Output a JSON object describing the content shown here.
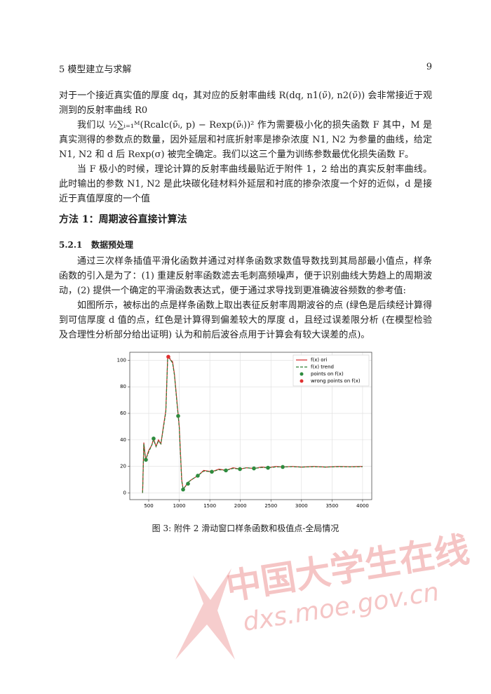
{
  "header": {
    "section": "5 模型建立与求解",
    "page": "9"
  },
  "body": {
    "paragraphs": [
      "对于一个接近真实值的厚度 dq，其对应的反射率曲线 R(dq, n1(ν̃), n2(ν̃)) 会非常接近于观测到的反射率曲线 R0",
      "我们以 ½∑ᵢ₌₁ᴹ(Rcalc(ν̃ᵢ, p) − Rexp(ν̃ᵢ))² 作为需要极小化的损失函数 F 其中，M 是真实测得的参数点的数量，因外延层和衬底折射率是掺杂浓度 N1, N2 为参量的曲线，给定 N1, N2 和 d 后 Rexp(σ) 被完全确定。我们以这三个量为训练参数最优化损失函数 F。",
      "当 F 极小的时候，理论计算的反射率曲线最贴近于附件 1，2 给出的真实反射率曲线。此时输出的参数 N1, N2 是此块碳化硅材料外延层和衬底的掺杂浓度一个好的近似，d 是接近于真值厚度的一个值"
    ],
    "section_title": "方法 1：周期波谷直接计算法",
    "subsection_number": "5.2.1",
    "subsection_title": "数据预处理",
    "paragraphs2": [
      "通过三次样条插值平滑化函数并通过对样条函数求数值导数找到其局部最小值点，样条函数的引入是为了：(1) 重建反射率函数滤去毛刺高频噪声，便于识别曲线大势趋上的周期波动，(2) 提供一个确定的平滑函数表达式，便于通过求导找到更准确波谷频数的参考值:",
      "如图所示，被标出的点是样条函数上取出表征反射率周期波谷的点 (绿色是后续经计算得到可信厚度 d 值的点，红色是计算得到偏差较大的厚度 d，且经过误差限分析 (在模型检验及合理性分析部分给出证明) 认为和前后波谷点用于计算会有较大误差的点)。"
    ]
  },
  "chart_data": {
    "type": "line",
    "x": [
      400,
      420,
      450,
      500,
      550,
      580,
      620,
      660,
      700,
      740,
      780,
      810,
      830,
      860,
      890,
      920,
      960,
      1000,
      1040,
      1063,
      1100,
      1143,
      1200,
      1303,
      1400,
      1533,
      1650,
      1763,
      1880,
      1993,
      2100,
      2222,
      2350,
      2452,
      2580,
      2693,
      2850,
      3000,
      3200,
      3400,
      3600,
      3800,
      4000
    ],
    "series": [
      {
        "name": "f(x) ori",
        "color": "#d62728",
        "dash": false,
        "values": [
          0,
          38,
          25,
          32,
          36,
          41,
          35,
          40,
          37,
          50,
          62,
          102,
          103,
          100,
          99,
          90,
          70,
          50,
          10,
          3,
          5,
          8,
          10,
          13,
          17,
          16,
          18,
          17,
          19,
          18,
          19,
          18.5,
          19.5,
          19,
          20,
          19.6,
          20,
          19.5,
          20,
          19.5,
          20,
          19.8,
          20
        ]
      },
      {
        "name": "f(x) trend",
        "color": "#2e7d32",
        "dash": true,
        "values": [
          0,
          37,
          25,
          31,
          36,
          40,
          35,
          39,
          37,
          49,
          61,
          101,
          102,
          100,
          98,
          89,
          69,
          49,
          9,
          3,
          5,
          8,
          10,
          13,
          16.5,
          16,
          17.5,
          17,
          18.5,
          18,
          19,
          18.5,
          19.2,
          19,
          19.6,
          19.6,
          19.8,
          19.5,
          19.8,
          19.5,
          19.8,
          19.7,
          19.8
        ]
      },
      {
        "name": "points on f(x)",
        "color": "#2e8b3e",
        "marker": true,
        "x": [
          454,
          580,
          982,
          1063,
          1143,
          1303,
          1533,
          1763,
          1993,
          2222,
          2452,
          2693
        ],
        "values": [
          25,
          41,
          58,
          2.6,
          7,
          13,
          16,
          17,
          18,
          18.5,
          19,
          19.6
        ]
      },
      {
        "name": "wrong points on f(x)",
        "color": "#e03030",
        "marker": true,
        "x": [
          821
        ],
        "values": [
          102.6
        ]
      }
    ],
    "xlim": [
      190,
      4150
    ],
    "xticks": [
      500,
      1000,
      1500,
      2000,
      2500,
      3000,
      3500,
      4000
    ],
    "ylim": [
      -5,
      106
    ],
    "yticks": [
      0,
      20,
      40,
      60,
      80,
      100
    ],
    "grid": true,
    "legend": "upper right"
  },
  "caption": "图 3: 附件 2 滑动窗口样条函数和极值点-全局情况",
  "watermark": {
    "cn": "中国大学生在线",
    "url": "dxs.moe.gov.cn"
  }
}
